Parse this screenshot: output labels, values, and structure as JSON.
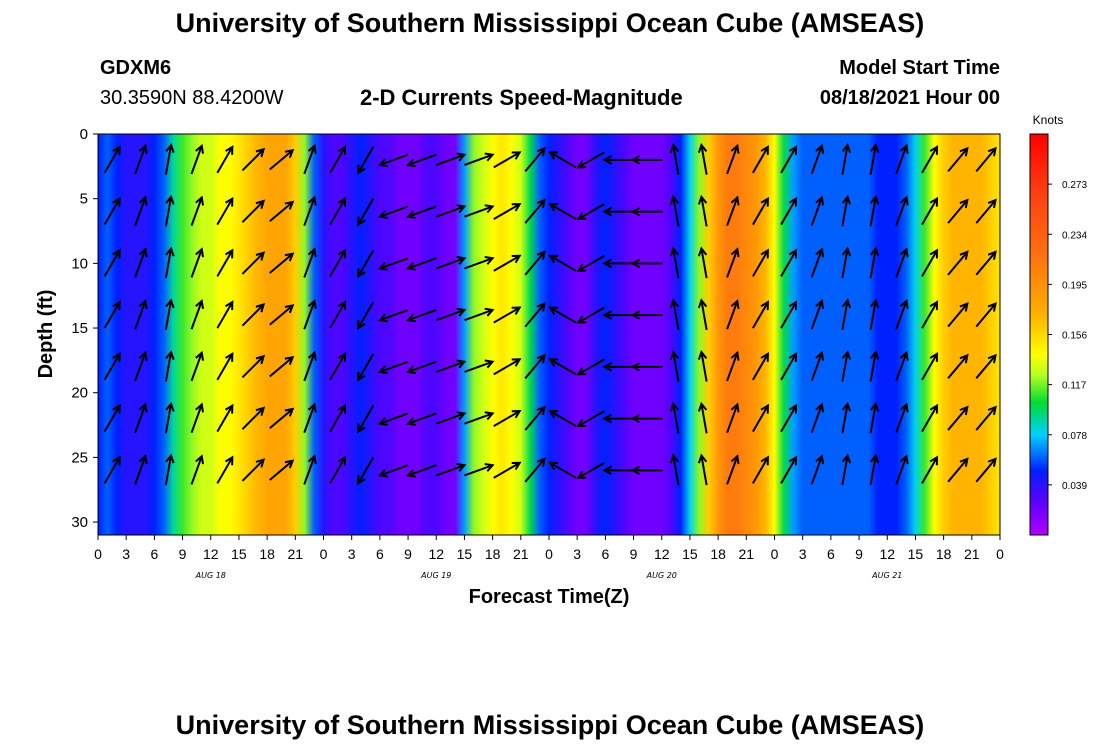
{
  "header": {
    "title_top": "University of Southern Mississippi Ocean Cube (AMSEAS)",
    "title_bottom": "University of Southern Mississippi Ocean Cube (AMSEAS)",
    "station_id": "GDXM6",
    "station_coords": "30.3590N  88.4200W",
    "plot_title": "2-D Currents Speed-Magnitude",
    "model_start_label": "Model Start Time",
    "model_start_value": "08/18/2021 Hour 00"
  },
  "chart_data": {
    "type": "heatmap",
    "xlabel": "Forecast Time(Z)",
    "ylabel": "Depth (ft)",
    "x_unit": "hours",
    "xlim": [
      0,
      96
    ],
    "ylim": [
      0,
      31
    ],
    "y_inverted": true,
    "x_tick_labels": [
      "0",
      "3",
      "6",
      "9",
      "12",
      "15",
      "18",
      "21",
      "0",
      "3",
      "6",
      "9",
      "12",
      "15",
      "18",
      "21",
      "0",
      "3",
      "6",
      "9",
      "12",
      "15",
      "18",
      "21",
      "0",
      "3",
      "6",
      "9",
      "12",
      "15",
      "18",
      "21",
      "0"
    ],
    "y_ticks": [
      0,
      5,
      10,
      15,
      20,
      25,
      30
    ],
    "day_labels": [
      "AUG 18",
      "AUG 19",
      "AUG 20",
      "AUG 21"
    ],
    "colorbar": {
      "title": "Knots",
      "ticks": [
        0.039,
        0.078,
        0.117,
        0.156,
        0.195,
        0.234,
        0.273
      ],
      "range": [
        0.0,
        0.312
      ]
    },
    "speed_profile_knots": [
      [
        0,
        0.05
      ],
      [
        1,
        0.06
      ],
      [
        2,
        0.05
      ],
      [
        3,
        0.04
      ],
      [
        4,
        0.04
      ],
      [
        5,
        0.04
      ],
      [
        6,
        0.05
      ],
      [
        7,
        0.06
      ],
      [
        8,
        0.09
      ],
      [
        9,
        0.11
      ],
      [
        10,
        0.12
      ],
      [
        11,
        0.13
      ],
      [
        12,
        0.13
      ],
      [
        13,
        0.14
      ],
      [
        14,
        0.14
      ],
      [
        15,
        0.15
      ],
      [
        16,
        0.16
      ],
      [
        17,
        0.17
      ],
      [
        18,
        0.18
      ],
      [
        19,
        0.18
      ],
      [
        20,
        0.18
      ],
      [
        21,
        0.16
      ],
      [
        22,
        0.12
      ],
      [
        23,
        0.06
      ],
      [
        24,
        0.04
      ],
      [
        25,
        0.03
      ],
      [
        26,
        0.03
      ],
      [
        27,
        0.04
      ],
      [
        28,
        0.05
      ],
      [
        29,
        0.04
      ],
      [
        30,
        0.03
      ],
      [
        31,
        0.03
      ],
      [
        32,
        0.02
      ],
      [
        33,
        0.02
      ],
      [
        34,
        0.02
      ],
      [
        35,
        0.03
      ],
      [
        36,
        0.03
      ],
      [
        37,
        0.02
      ],
      [
        38,
        0.02
      ],
      [
        39,
        0.07
      ],
      [
        40,
        0.12
      ],
      [
        41,
        0.13
      ],
      [
        42,
        0.14
      ],
      [
        43,
        0.15
      ],
      [
        44,
        0.14
      ],
      [
        45,
        0.13
      ],
      [
        46,
        0.1
      ],
      [
        47,
        0.06
      ],
      [
        48,
        0.05
      ],
      [
        49,
        0.04
      ],
      [
        50,
        0.03
      ],
      [
        51,
        0.02
      ],
      [
        52,
        0.02
      ],
      [
        53,
        0.04
      ],
      [
        54,
        0.05
      ],
      [
        55,
        0.04
      ],
      [
        56,
        0.03
      ],
      [
        57,
        0.02
      ],
      [
        58,
        0.02
      ],
      [
        59,
        0.02
      ],
      [
        60,
        0.02
      ],
      [
        61,
        0.03
      ],
      [
        62,
        0.05
      ],
      [
        63,
        0.08
      ],
      [
        64,
        0.12
      ],
      [
        65,
        0.16
      ],
      [
        66,
        0.19
      ],
      [
        67,
        0.21
      ],
      [
        68,
        0.21
      ],
      [
        69,
        0.2
      ],
      [
        70,
        0.19
      ],
      [
        71,
        0.17
      ],
      [
        72,
        0.14
      ],
      [
        73,
        0.1
      ],
      [
        74,
        0.07
      ],
      [
        75,
        0.06
      ],
      [
        76,
        0.06
      ],
      [
        77,
        0.06
      ],
      [
        78,
        0.06
      ],
      [
        79,
        0.06
      ],
      [
        80,
        0.06
      ],
      [
        81,
        0.06
      ],
      [
        82,
        0.06
      ],
      [
        83,
        0.05
      ],
      [
        84,
        0.05
      ],
      [
        85,
        0.05
      ],
      [
        86,
        0.06
      ],
      [
        87,
        0.08
      ],
      [
        88,
        0.11
      ],
      [
        89,
        0.14
      ],
      [
        90,
        0.16
      ],
      [
        91,
        0.17
      ],
      [
        92,
        0.17
      ],
      [
        93,
        0.17
      ],
      [
        94,
        0.17
      ],
      [
        95,
        0.16
      ],
      [
        96,
        0.15
      ]
    ],
    "vector_columns_hours": [
      0,
      3,
      6,
      9,
      12,
      15,
      18,
      21,
      24,
      27,
      30,
      33,
      36,
      39,
      42,
      45,
      48,
      51,
      54,
      57,
      60,
      63,
      66,
      69,
      72,
      75,
      78,
      81,
      84,
      87,
      90,
      93
    ],
    "vector_direction_deg": [
      30,
      20,
      10,
      20,
      30,
      45,
      50,
      20,
      30,
      210,
      250,
      250,
      70,
      70,
      60,
      40,
      300,
      240,
      270,
      270,
      350,
      350,
      20,
      30,
      30,
      20,
      10,
      10,
      20,
      30,
      40,
      40
    ],
    "vector_depths_ft": [
      2,
      6,
      10,
      14,
      18,
      22,
      26
    ]
  }
}
